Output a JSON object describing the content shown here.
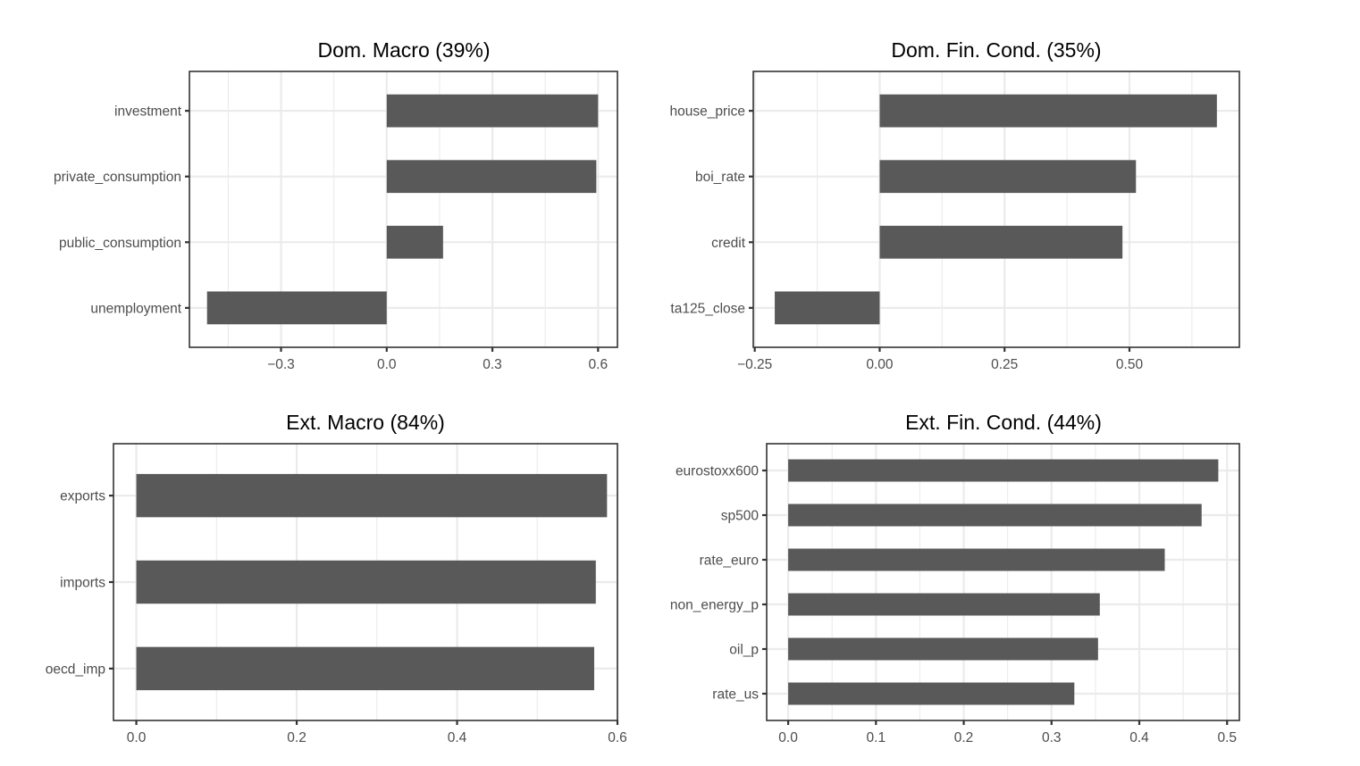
{
  "chart_data": [
    {
      "type": "bar",
      "orientation": "horizontal",
      "title": "Dom. Macro (39%)",
      "categories": [
        "investment",
        "private_consumption",
        "public_consumption",
        "unemployment"
      ],
      "values": [
        0.6,
        0.595,
        0.16,
        -0.51
      ],
      "xlim": [
        -0.56,
        0.655
      ],
      "xticks": [
        -0.3,
        0.0,
        0.3,
        0.6
      ],
      "xtick_labels": [
        "−0.3",
        "0.0",
        "0.3",
        "0.6"
      ],
      "bar_color": "#595959",
      "grid": true
    },
    {
      "type": "bar",
      "orientation": "horizontal",
      "title": "Dom. Fin. Cond. (35%)",
      "categories": [
        "house_price",
        "boi_rate",
        "credit",
        "ta125_close"
      ],
      "values": [
        0.675,
        0.513,
        0.486,
        -0.21
      ],
      "xlim": [
        -0.253,
        0.72
      ],
      "xticks": [
        -0.25,
        0.0,
        0.25,
        0.5
      ],
      "xtick_labels": [
        "−0.25",
        "0.00",
        "0.25",
        "0.50"
      ],
      "bar_color": "#595959",
      "grid": true
    },
    {
      "type": "bar",
      "orientation": "horizontal",
      "title": "Ext. Macro (84%)",
      "categories": [
        "exports",
        "imports",
        "oecd_imp"
      ],
      "values": [
        0.587,
        0.573,
        0.571
      ],
      "xlim": [
        -0.0285,
        0.6
      ],
      "xticks": [
        0.0,
        0.2,
        0.4,
        0.6
      ],
      "xtick_labels": [
        "0.0",
        "0.2",
        "0.4",
        "0.6"
      ],
      "bar_color": "#595959",
      "grid": true
    },
    {
      "type": "bar",
      "orientation": "horizontal",
      "title": "Ext. Fin. Cond. (44%)",
      "categories": [
        "eurostoxx600",
        "sp500",
        "rate_euro",
        "non_energy_p",
        "oil_p",
        "rate_us"
      ],
      "values": [
        0.49,
        0.471,
        0.429,
        0.355,
        0.353,
        0.326
      ],
      "xlim": [
        -0.0245,
        0.514
      ],
      "xticks": [
        0.0,
        0.1,
        0.2,
        0.3,
        0.4,
        0.5
      ],
      "xtick_labels": [
        "0.0",
        "0.1",
        "0.2",
        "0.3",
        "0.4",
        "0.5"
      ],
      "bar_color": "#595959",
      "grid": true
    }
  ]
}
